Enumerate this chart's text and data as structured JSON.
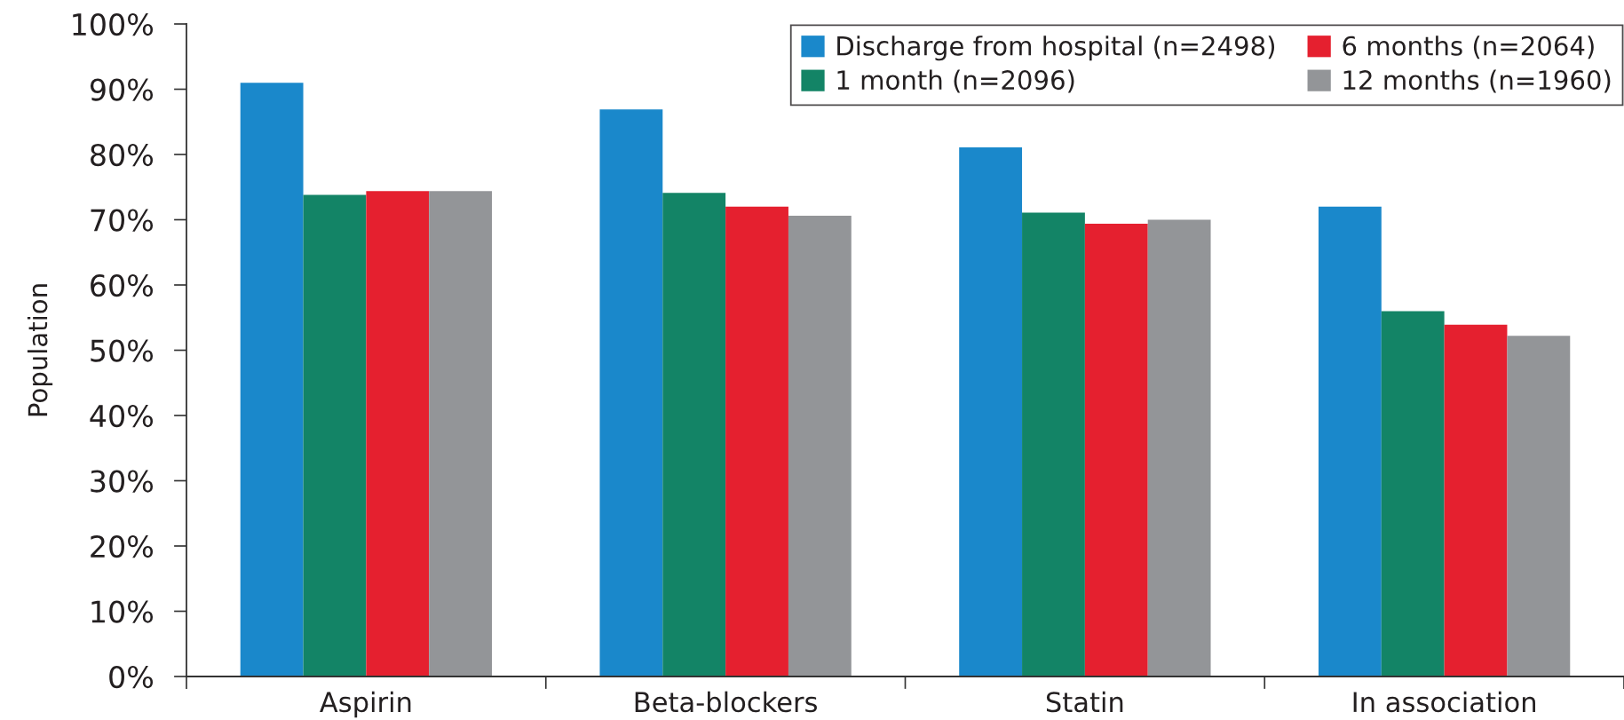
{
  "chart_data": {
    "type": "bar",
    "ylabel": "Population",
    "categories": [
      "Aspirin",
      "Beta-blockers",
      "Statin",
      "In association"
    ],
    "series": [
      {
        "name": "Discharge from hospital (n=2498)",
        "color": "#1a88cb",
        "values": [
          91.0,
          86.9,
          81.1,
          72.0
        ]
      },
      {
        "name": "1 month (n=2096)",
        "color": "#138466",
        "values": [
          73.8,
          74.1,
          71.1,
          56.0
        ]
      },
      {
        "name": "6 months (n=2064)",
        "color": "#e5202f",
        "values": [
          74.4,
          72.0,
          69.4,
          53.9
        ]
      },
      {
        "name": "12 months (n=1960)",
        "color": "#939598",
        "values": [
          74.4,
          70.6,
          70.0,
          52.2
        ]
      }
    ],
    "ylim": [
      0,
      100
    ],
    "yticks": [
      {
        "value": 0,
        "label": "0%"
      },
      {
        "value": 10,
        "label": "10%"
      },
      {
        "value": 20,
        "label": "20%"
      },
      {
        "value": 30,
        "label": "30%"
      },
      {
        "value": 40,
        "label": "40%"
      },
      {
        "value": 50,
        "label": "50%"
      },
      {
        "value": 60,
        "label": "60%"
      },
      {
        "value": 70,
        "label": "70%"
      },
      {
        "value": 80,
        "label": "80%"
      },
      {
        "value": 90,
        "label": "90%"
      },
      {
        "value": 100,
        "label": "100%"
      }
    ],
    "grid": false,
    "legend": "top right"
  }
}
